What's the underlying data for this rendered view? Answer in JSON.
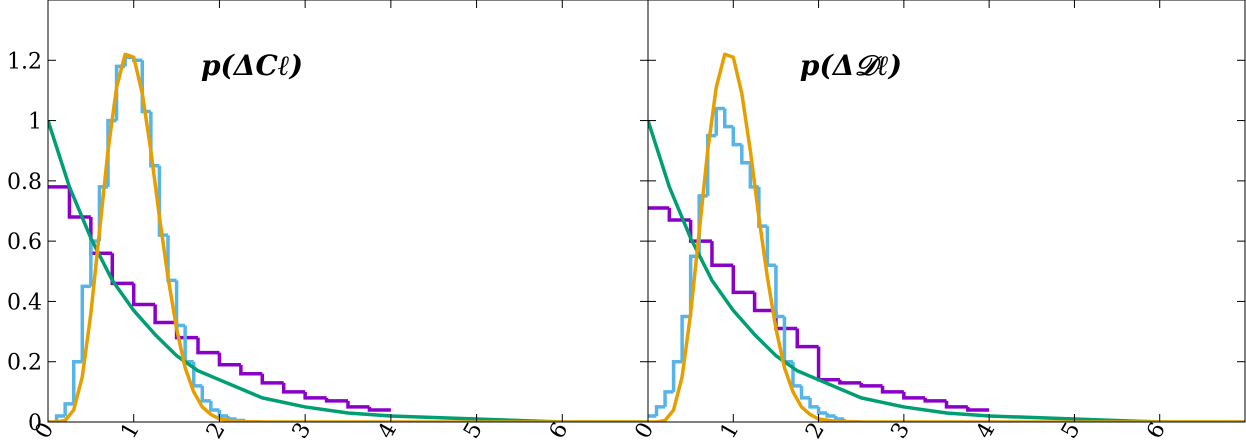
{
  "chart_data": [
    {
      "type": "line",
      "title": "p(ΔCℓ)",
      "xlim": [
        0,
        7
      ],
      "ylim": [
        0,
        1.4
      ],
      "xticks": [
        0,
        1,
        2,
        3,
        4,
        5,
        6
      ],
      "yticks": [
        0,
        0.2,
        0.4,
        0.6,
        0.8,
        1,
        1.2
      ],
      "series": [
        {
          "color": "#8a00c8",
          "drawstyle": "steps",
          "bins": [
            0,
            0.25,
            0.5,
            0.75,
            1,
            1.25,
            1.5,
            1.75,
            2,
            2.25,
            2.5,
            2.75,
            3,
            3.25,
            3.5,
            3.75,
            4
          ],
          "values": [
            0.78,
            0.68,
            0.56,
            0.46,
            0.39,
            0.33,
            0.28,
            0.23,
            0.19,
            0.16,
            0.13,
            0.1,
            0.08,
            0.07,
            0.05,
            0.04
          ]
        },
        {
          "color": "#56b4e9",
          "drawstyle": "steps",
          "bins": [
            0,
            0.1,
            0.2,
            0.3,
            0.4,
            0.5,
            0.6,
            0.7,
            0.8,
            0.9,
            1,
            1.1,
            1.2,
            1.3,
            1.4,
            1.5,
            1.6,
            1.7,
            1.8,
            1.9,
            2,
            2.1,
            2.2,
            2.3,
            2.4,
            2.5
          ],
          "values": [
            0,
            0.02,
            0.06,
            0.2,
            0.45,
            0.6,
            0.78,
            1,
            1.18,
            1.21,
            1.2,
            1.03,
            0.85,
            0.62,
            0.47,
            0.32,
            0.2,
            0.12,
            0.07,
            0.04,
            0.02,
            0.01,
            0.005,
            0,
            0
          ]
        },
        {
          "color": "#009e73",
          "x": [
            0,
            0.25,
            0.5,
            0.75,
            1,
            1.25,
            1.5,
            1.75,
            2,
            2.5,
            3,
            3.5,
            4,
            5,
            6,
            7
          ],
          "values": [
            1,
            0.78,
            0.61,
            0.47,
            0.37,
            0.29,
            0.22,
            0.17,
            0.14,
            0.08,
            0.05,
            0.03,
            0.02,
            0.01,
            0,
            0
          ]
        },
        {
          "color": "#e69f00",
          "x": [
            0,
            0.1,
            0.2,
            0.3,
            0.4,
            0.5,
            0.6,
            0.7,
            0.8,
            0.9,
            1,
            1.1,
            1.2,
            1.3,
            1.4,
            1.5,
            1.6,
            1.7,
            1.8,
            1.9,
            2,
            2.2,
            2.5,
            7
          ],
          "values": [
            0,
            0,
            0.005,
            0.04,
            0.15,
            0.36,
            0.63,
            0.9,
            1.11,
            1.22,
            1.21,
            1.09,
            0.9,
            0.68,
            0.48,
            0.31,
            0.18,
            0.1,
            0.05,
            0.025,
            0.01,
            0.002,
            0,
            0
          ]
        }
      ]
    },
    {
      "type": "line",
      "title": "p(Δ𝒟ℓ)",
      "sharey": true,
      "xlim": [
        0,
        7
      ],
      "ylim": [
        0,
        1.4
      ],
      "xticks": [
        0,
        1,
        2,
        3,
        4,
        5,
        6
      ],
      "series": [
        {
          "color": "#8a00c8",
          "drawstyle": "steps",
          "bins": [
            0,
            0.25,
            0.5,
            0.75,
            1,
            1.25,
            1.5,
            1.75,
            2,
            2.25,
            2.5,
            2.75,
            3,
            3.25,
            3.5,
            3.75,
            4
          ],
          "values": [
            0.71,
            0.67,
            0.6,
            0.52,
            0.43,
            0.37,
            0.31,
            0.25,
            0.14,
            0.13,
            0.12,
            0.1,
            0.08,
            0.07,
            0.05,
            0.04
          ]
        },
        {
          "color": "#56b4e9",
          "drawstyle": "steps",
          "bins": [
            0,
            0.1,
            0.2,
            0.3,
            0.4,
            0.5,
            0.6,
            0.7,
            0.8,
            0.9,
            1,
            1.1,
            1.2,
            1.3,
            1.4,
            1.5,
            1.6,
            1.7,
            1.8,
            1.9,
            2,
            2.1,
            2.2,
            2.3,
            2.4,
            2.5
          ],
          "values": [
            0.02,
            0.05,
            0.1,
            0.2,
            0.35,
            0.55,
            0.75,
            0.95,
            1.04,
            0.98,
            0.92,
            0.86,
            0.78,
            0.65,
            0.52,
            0.35,
            0.2,
            0.12,
            0.08,
            0.05,
            0.03,
            0.02,
            0.01,
            0,
            0
          ]
        },
        {
          "color": "#009e73",
          "x": [
            0,
            0.25,
            0.5,
            0.75,
            1,
            1.25,
            1.5,
            1.75,
            2,
            2.5,
            3,
            3.5,
            4,
            5,
            6,
            7
          ],
          "values": [
            1,
            0.78,
            0.61,
            0.47,
            0.37,
            0.29,
            0.22,
            0.17,
            0.14,
            0.08,
            0.05,
            0.03,
            0.02,
            0.01,
            0,
            0
          ]
        },
        {
          "color": "#e69f00",
          "x": [
            0,
            0.1,
            0.2,
            0.3,
            0.4,
            0.5,
            0.6,
            0.7,
            0.8,
            0.9,
            1,
            1.1,
            1.2,
            1.3,
            1.4,
            1.5,
            1.6,
            1.7,
            1.8,
            1.9,
            2,
            2.2,
            2.5,
            7
          ],
          "values": [
            0,
            0,
            0.005,
            0.04,
            0.15,
            0.36,
            0.63,
            0.9,
            1.11,
            1.22,
            1.21,
            1.09,
            0.9,
            0.68,
            0.48,
            0.31,
            0.18,
            0.1,
            0.05,
            0.025,
            0.01,
            0.002,
            0,
            0
          ]
        }
      ]
    }
  ]
}
